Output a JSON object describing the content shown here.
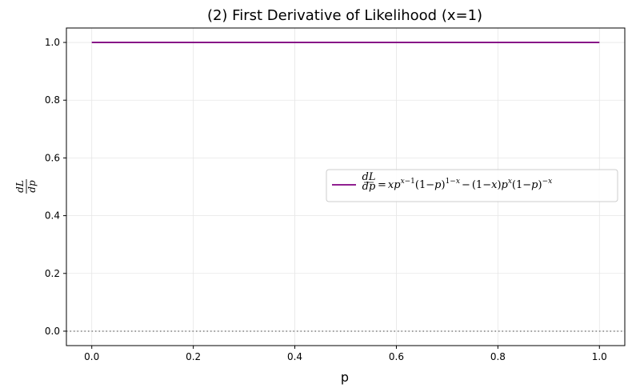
{
  "chart_data": {
    "type": "line",
    "title": "(2) First Derivative of Likelihood (x=1)",
    "xlabel": "p",
    "ylabel_numerator": "dL",
    "ylabel_denominator": "dp",
    "xlim": [
      -0.05,
      1.05
    ],
    "ylim": [
      -0.05,
      1.05
    ],
    "xticks": [
      0.0,
      0.2,
      0.4,
      0.6,
      0.8,
      1.0
    ],
    "xtick_labels": [
      "0.0",
      "0.2",
      "0.4",
      "0.6",
      "0.8",
      "1.0"
    ],
    "yticks": [
      0.0,
      0.2,
      0.4,
      0.6,
      0.8,
      1.0
    ],
    "ytick_labels": [
      "0.0",
      "0.2",
      "0.4",
      "0.6",
      "0.8",
      "1.0"
    ],
    "grid": true,
    "legend_placement": "center-right",
    "series": [
      {
        "name": "dL/dp = x p^(x−1)(1−p)^(1−x) − (1−x) p^x (1−p)^(−x)",
        "color": "#800080",
        "x": [
          0.0,
          1.0
        ],
        "y": [
          1.0,
          1.0
        ]
      }
    ],
    "reference_lines": [
      {
        "y": 0.0,
        "color": "#808080",
        "style": "dotted"
      }
    ]
  }
}
